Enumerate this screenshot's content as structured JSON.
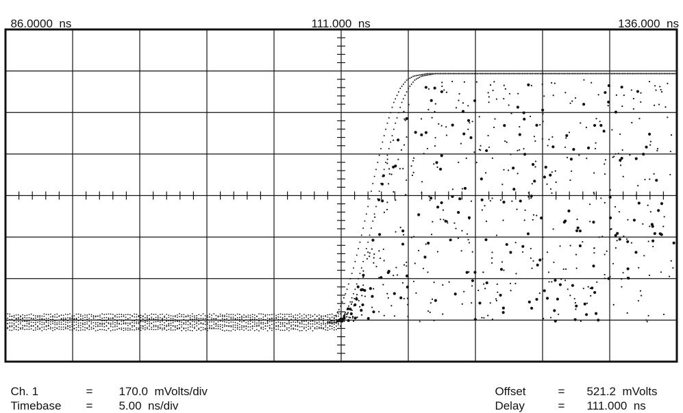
{
  "header": {
    "left_time": "86.0000",
    "left_unit": "ns",
    "center_time": "111.000",
    "center_unit": "ns",
    "right_time": "136.000",
    "right_unit": "ns"
  },
  "footer": {
    "channel_label": "Ch. 1",
    "channel_eq": "=",
    "channel_value": "170.0",
    "channel_unit": "mVolts/div",
    "timebase_label": "Timebase",
    "timebase_eq": "=",
    "timebase_value": "5.00",
    "timebase_unit": "ns/div",
    "offset_label": "Offset",
    "offset_eq": "=",
    "offset_value": "521.2",
    "offset_unit": "mVolts",
    "delay_label": "Delay",
    "delay_eq": "=",
    "delay_value": "111.000",
    "delay_unit": "ns"
  },
  "colors": {
    "trace": "#111111",
    "grid": "#111111",
    "background": "#ffffff"
  },
  "chart_data": {
    "type": "scatter",
    "title": "",
    "xlabel": "",
    "ylabel": "",
    "grid": true,
    "x_unit": "ns",
    "y_unit": "mV",
    "xlim": [
      86.0,
      136.0
    ],
    "x_divisions": 10,
    "y_divisions": 8,
    "ns_per_div": 5.0,
    "mv_per_div": 170.0,
    "ylim": [
      -159,
      1201
    ],
    "series": [
      {
        "points": [
          [
            86.0,
            0
          ],
          [
            100.0,
            0
          ],
          [
            110.5,
            0
          ],
          [
            111.0,
            10
          ],
          [
            111.5,
            60
          ],
          [
            112.0,
            130
          ],
          [
            112.5,
            220
          ],
          [
            113.0,
            330
          ],
          [
            113.5,
            450
          ],
          [
            114.0,
            580
          ],
          [
            114.5,
            700
          ],
          [
            115.0,
            810
          ],
          [
            115.5,
            900
          ],
          [
            116.0,
            960
          ],
          [
            116.5,
            995
          ],
          [
            117.0,
            1010
          ],
          [
            118.0,
            1020
          ],
          [
            125.0,
            1020
          ],
          [
            136.0,
            1020
          ]
        ]
      }
    ]
  }
}
